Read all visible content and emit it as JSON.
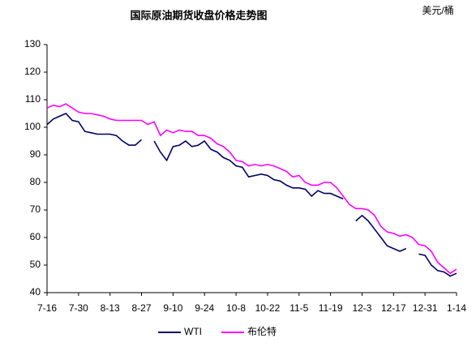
{
  "chart_data": {
    "type": "line",
    "title": "国际原油期货收盘价格走势图",
    "unit": "美元/桶",
    "categories": [
      "7-16",
      null,
      null,
      null,
      null,
      "7-30",
      null,
      null,
      null,
      null,
      "8-13",
      null,
      null,
      null,
      null,
      "8-27",
      null,
      null,
      null,
      null,
      "9-10",
      null,
      null,
      null,
      null,
      "9-24",
      null,
      null,
      null,
      null,
      "10-8",
      null,
      null,
      null,
      null,
      "10-22",
      null,
      null,
      null,
      null,
      "11-5",
      null,
      null,
      null,
      null,
      "11-19",
      null,
      null,
      null,
      null,
      "12-3",
      null,
      null,
      null,
      null,
      "12-17",
      null,
      null,
      null,
      null,
      "12-31",
      null,
      null,
      null,
      null,
      "1-14"
    ],
    "series": [
      {
        "name": "WTI",
        "color": "#000066",
        "values": [
          101,
          103,
          104,
          105,
          102.5,
          102,
          98.5,
          98,
          97.5,
          97.5,
          97.5,
          97,
          95,
          93.5,
          93.5,
          95.5,
          null,
          95,
          91,
          88,
          93,
          93.5,
          95,
          93,
          93.5,
          95,
          92,
          91,
          89,
          88,
          86,
          85.5,
          82,
          82.5,
          83,
          82.5,
          81,
          80.5,
          79,
          78,
          78,
          77.5,
          75,
          77,
          76,
          76,
          75,
          74,
          null,
          66,
          68,
          66,
          63,
          60,
          57,
          56,
          55,
          56,
          null,
          54,
          53.5,
          50,
          48,
          47.5,
          46,
          47
        ]
      },
      {
        "name": "布伦特",
        "color": "#ff00ff",
        "values": [
          107,
          108,
          107.5,
          108.5,
          107,
          105.5,
          105,
          105,
          104.5,
          104,
          103,
          102.5,
          102.5,
          102.5,
          102.5,
          102.5,
          101,
          102,
          97,
          99,
          98,
          99,
          98.5,
          98.5,
          97,
          97,
          96,
          94,
          93,
          91,
          88,
          87.5,
          86,
          86.5,
          86,
          86.5,
          86,
          85,
          84,
          82,
          82.5,
          80,
          79,
          79,
          80,
          80,
          78,
          75,
          72,
          70.5,
          70.5,
          70,
          68,
          64,
          62,
          61.5,
          60.5,
          61,
          60,
          57.5,
          57,
          55,
          51,
          49,
          47,
          48.5
        ]
      }
    ],
    "ylim": [
      40,
      130
    ],
    "yticks": [
      40,
      50,
      60,
      70,
      80,
      90,
      100,
      110,
      120,
      130
    ]
  }
}
